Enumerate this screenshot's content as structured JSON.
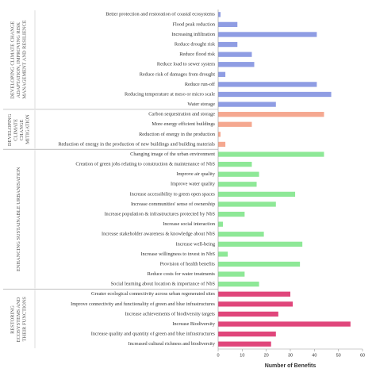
{
  "chart_data": {
    "type": "bar",
    "orientation": "horizontal",
    "x_label": "Number of Benefits",
    "xlim": [
      0,
      60
    ],
    "xticks": [
      0,
      10,
      20,
      30,
      40,
      50,
      60
    ],
    "groups": [
      {
        "name": "DEVELOPING CLIMATE CHANGE ADAPTATION, IMPROVING RISK MANAGEMENT AND RESILIENCE",
        "color": "#8f9de3",
        "categories": [
          "Better protection and restoration of coastal ecosystems",
          "Flood peak reduction",
          "Increasing infiltration",
          "Reduce drought risk",
          "Reduce flood risk",
          "Reduce load to sewer system",
          "Reduce risk of damages from drought",
          "Reduce run-off",
          "Reducing temperature at meso or micro scale",
          "Water storage"
        ],
        "values": [
          1,
          8,
          41,
          8,
          14,
          15,
          3,
          41,
          47,
          24
        ]
      },
      {
        "name": "DEVELOPING CLIMATE CHANGE MITIGATION",
        "color": "#f5a890",
        "categories": [
          "Carbon sequestration and storage",
          "More energy efficient buildings",
          "Reduction of energy in the production",
          "Reduction of energy in the production of new buildings and building materials"
        ],
        "values": [
          44,
          14,
          1,
          3
        ]
      },
      {
        "name": "ENHANCING SUSTAINABLE URBANISATION",
        "color": "#8ee897",
        "categories": [
          "Changing image of the urban environment",
          "Creation of green jobs relating to construction & maintenance of NbS",
          "Improve air quality",
          "Improve water quality",
          "Increase accessibility to green open spaces",
          "Increase communities' sense of ownership",
          "Increase population & infrastructures protected by NbS",
          "Increase social interaction",
          "Increase stakeholder awareness & knowledge about NbS",
          "Increase well-being",
          "Increase willingness to invest in NbS",
          "Provision of health benefits",
          "Reduce costs for water treatments",
          "Social learning about location & importance of NbS"
        ],
        "values": [
          44,
          14,
          17,
          16,
          32,
          24,
          11,
          2,
          19,
          35,
          4,
          34,
          11,
          17
        ]
      },
      {
        "name": "RESTORING ECOSYSTEMS AND THEIR FUNCTIONS",
        "color": "#e0467b",
        "categories": [
          "Greater ecological connectivity across urban regenerated sites",
          "Improve connectivity and functionality of green and blue infrastructures",
          "Increase achievements of biodiversity targets",
          "Increase Biodiversity",
          "Increase quality and quantity of green and blue infrastructures",
          "Increased cultural richness and biodiversity"
        ],
        "values": [
          30,
          31,
          25,
          55,
          24,
          22
        ]
      }
    ]
  }
}
